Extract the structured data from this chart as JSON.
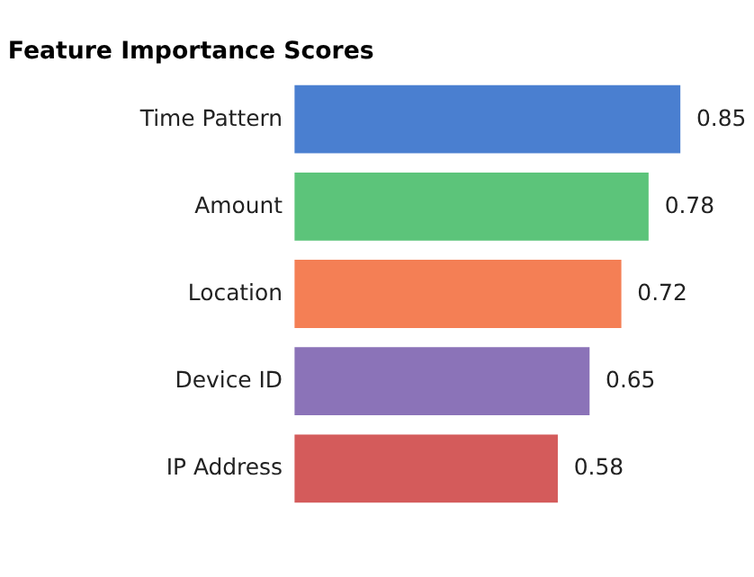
{
  "chart_data": {
    "type": "bar",
    "orientation": "horizontal",
    "title": "Feature Importance Scores",
    "categories": [
      "Time Pattern",
      "Amount",
      "Location",
      "Device ID",
      "IP Address"
    ],
    "values": [
      0.85,
      0.78,
      0.72,
      0.65,
      0.58
    ],
    "colors": [
      "#4a7fd0",
      "#5cc47a",
      "#f47f55",
      "#8b73b8",
      "#d45b5b"
    ],
    "data_labels": true,
    "tick_labels": "y"
  }
}
